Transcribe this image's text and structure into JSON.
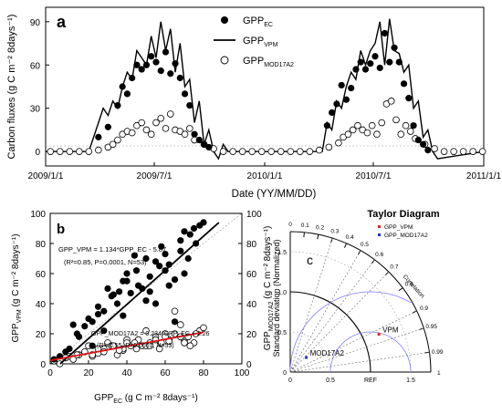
{
  "chart_data": [
    {
      "type": "line",
      "panel": "a",
      "xlabel": "Date (YY/MM/DD)",
      "ylabel": "Carbon fluxes (g C m⁻² 8days⁻¹)",
      "x_ticks": [
        "2009/1/1",
        "2009/7/1",
        "2010/1/1",
        "2010/7/1",
        "2011/1/1"
      ],
      "y_ticks": [
        0,
        30,
        60,
        90
      ],
      "xlim": [
        "2009/1/1",
        "2011/1/1"
      ],
      "ylim": [
        -10,
        100
      ],
      "legend_position": "top-right",
      "series": [
        {
          "name": "GPP",
          "name_sub": "EC",
          "marker": "filled-circle",
          "x": [
            "2009/3/30",
            "2009/4/15",
            "2009/5/1",
            "2009/5/9",
            "2009/5/17",
            "2009/5/25",
            "2009/6/2",
            "2009/6/10",
            "2009/6/18",
            "2009/6/26",
            "2009/7/4",
            "2009/7/12",
            "2009/7/20",
            "2009/7/28",
            "2009/8/5",
            "2009/8/13",
            "2009/8/21",
            "2009/8/29",
            "2009/9/6",
            "2009/9/14",
            "2009/9/22",
            "2009/9/30",
            "2010/4/15",
            "2010/4/23",
            "2010/5/1",
            "2010/5/9",
            "2010/5/17",
            "2010/5/25",
            "2010/6/2",
            "2010/6/10",
            "2010/6/18",
            "2010/6/26",
            "2010/7/4",
            "2010/7/12",
            "2010/7/20",
            "2010/7/28",
            "2010/8/5",
            "2010/8/13",
            "2010/8/21",
            "2010/8/29",
            "2010/9/6",
            "2010/9/14",
            "2010/9/22",
            "2010/9/30"
          ],
          "y": [
            10,
            17,
            32,
            45,
            40,
            51,
            60,
            57,
            60,
            66,
            62,
            56,
            69,
            54,
            61,
            51,
            40,
            32,
            12,
            8,
            5,
            3,
            18,
            27,
            33,
            46,
            36,
            44,
            57,
            62,
            57,
            61,
            66,
            58,
            82,
            62,
            72,
            62,
            47,
            37,
            18,
            8,
            5,
            1
          ]
        },
        {
          "name": "GPP",
          "name_sub": "VPM",
          "marker": "line",
          "x": [
            "2009/1/1",
            "2009/3/14",
            "2009/3/22",
            "2009/3/30",
            "2009/4/7",
            "2009/4/15",
            "2009/4/23",
            "2009/5/1",
            "2009/5/9",
            "2009/5/17",
            "2009/5/25",
            "2009/6/2",
            "2009/6/10",
            "2009/6/18",
            "2009/6/26",
            "2009/7/4",
            "2009/7/12",
            "2009/7/20",
            "2009/7/28",
            "2009/8/5",
            "2009/8/13",
            "2009/8/21",
            "2009/8/29",
            "2009/9/6",
            "2009/9/14",
            "2009/9/22",
            "2009/9/30",
            "2009/10/8",
            "2009/10/16",
            "2009/10/24",
            "2009/11/1",
            "2009/11/9",
            "2010/4/7",
            "2010/4/15",
            "2010/4/23",
            "2010/5/1",
            "2010/5/9",
            "2010/5/17",
            "2010/5/25",
            "2010/6/2",
            "2010/6/10",
            "2010/6/18",
            "2010/6/26",
            "2010/7/4",
            "2010/7/12",
            "2010/7/20",
            "2010/7/28",
            "2010/8/5",
            "2010/8/13",
            "2010/8/21",
            "2010/8/29",
            "2010/9/6",
            "2010/9/14",
            "2010/9/22",
            "2010/9/30",
            "2010/10/8",
            "2010/10/16",
            "2011/1/1"
          ],
          "y": [
            0,
            0,
            10,
            20,
            30,
            25,
            35,
            30,
            45,
            55,
            50,
            70,
            65,
            60,
            80,
            65,
            90,
            70,
            85,
            55,
            75,
            45,
            50,
            20,
            35,
            5,
            15,
            0,
            -5,
            5,
            0,
            0,
            0,
            20,
            15,
            35,
            30,
            45,
            55,
            50,
            70,
            60,
            70,
            75,
            90,
            60,
            92,
            70,
            68,
            55,
            60,
            30,
            35,
            10,
            15,
            0,
            -5,
            0
          ]
        },
        {
          "name": "GPP",
          "name_sub": "MOD17A2",
          "marker": "open-circle",
          "x": [
            "2009/1/9",
            "2009/1/25",
            "2009/2/10",
            "2009/2/26",
            "2009/3/14",
            "2009/3/30",
            "2009/4/15",
            "2009/4/23",
            "2009/5/1",
            "2009/5/9",
            "2009/5/17",
            "2009/5/25",
            "2009/6/2",
            "2009/6/10",
            "2009/6/18",
            "2009/6/26",
            "2009/7/4",
            "2009/7/12",
            "2009/7/20",
            "2009/7/28",
            "2009/8/5",
            "2009/8/13",
            "2009/8/21",
            "2009/8/29",
            "2009/9/6",
            "2009/9/22",
            "2009/10/8",
            "2009/10/24",
            "2009/11/9",
            "2009/11/25",
            "2009/12/11",
            "2009/12/27",
            "2010/1/12",
            "2010/1/28",
            "2010/2/13",
            "2010/3/1",
            "2010/3/17",
            "2010/4/2",
            "2010/4/18",
            "2010/5/4",
            "2010/5/12",
            "2010/5/20",
            "2010/5/28",
            "2010/6/5",
            "2010/6/13",
            "2010/6/21",
            "2010/6/29",
            "2010/7/7",
            "2010/7/15",
            "2010/7/23",
            "2010/7/31",
            "2010/8/8",
            "2010/8/16",
            "2010/8/24",
            "2010/9/1",
            "2010/9/9",
            "2010/9/25",
            "2010/10/11",
            "2010/10/27",
            "2010/11/12",
            "2010/11/28",
            "2010/12/14",
            "2010/12/30"
          ],
          "y": [
            0,
            0,
            0,
            0,
            0,
            1,
            3,
            5,
            8,
            12,
            14,
            13,
            18,
            20,
            15,
            12,
            20,
            23,
            16,
            26,
            15,
            14,
            12,
            16,
            8,
            5,
            2,
            0,
            0,
            0,
            0,
            0,
            0,
            0,
            0,
            0,
            0,
            1,
            3,
            6,
            10,
            12,
            15,
            18,
            15,
            13,
            18,
            12,
            20,
            33,
            35,
            22,
            12,
            18,
            14,
            9,
            5,
            2,
            0,
            0,
            0,
            0,
            0
          ]
        }
      ]
    },
    {
      "type": "scatter",
      "panel": "b",
      "xlabel": "GPP",
      "xlabel_sub": "EC",
      "xlabel_unit": " (g C m⁻² 8days⁻¹)",
      "ylabel": "GPP",
      "ylabel_sub": "VPM",
      "ylabel_unit": " (g C m⁻² 8days⁻¹)",
      "ylabel2": "GPP",
      "ylabel2_sub": "MOD17A2",
      "ylabel2_unit": " (g C m⁻² 8days⁻¹)",
      "xlim": [
        0,
        100
      ],
      "ylim": [
        0,
        100
      ],
      "x_ticks": [
        0,
        20,
        40,
        60,
        80,
        100
      ],
      "y_ticks": [
        0,
        20,
        40,
        60,
        80,
        100
      ],
      "eq_vpm": "GPP_VPM = 1.134*GPP_EC - 5.87",
      "stats_vpm": "(R²=0.85, P=0.0001, N=53)",
      "eq_mod": "GPP_MOD17A2 = 0.234*GPP_EC + 2.26",
      "stats_mod": "(R²=0.55, P=0.0001, N=53)",
      "fit_vpm": {
        "slope": 1.134,
        "intercept": -5.87
      },
      "fit_mod": {
        "slope": 0.234,
        "intercept": 2.26
      },
      "series": [
        {
          "marker": "filled-circle",
          "color": "#000000",
          "x": [
            2,
            5,
            10,
            12,
            15,
            18,
            20,
            22,
            25,
            28,
            30,
            32,
            35,
            38,
            40,
            42,
            45,
            48,
            50,
            52,
            55,
            58,
            60,
            62,
            65,
            68,
            70,
            72,
            75,
            78,
            80,
            8,
            14,
            25,
            33,
            40,
            46,
            50,
            57,
            60,
            65,
            70,
            73,
            28,
            38,
            44,
            52,
            55,
            62,
            68,
            76,
            22,
            36
          ],
          "y": [
            3,
            5,
            10,
            26,
            18,
            25,
            30,
            28,
            38,
            22,
            50,
            45,
            40,
            55,
            60,
            47,
            62,
            50,
            70,
            48,
            68,
            78,
            62,
            66,
            56,
            82,
            88,
            70,
            90,
            92,
            94,
            8,
            20,
            33,
            46,
            55,
            52,
            42,
            65,
            73,
            28,
            60,
            86,
            35,
            32,
            72,
            58,
            40,
            52,
            75,
            80,
            12,
            48
          ]
        },
        {
          "marker": "open-circle",
          "color": "#000000",
          "x": [
            2,
            5,
            10,
            12,
            15,
            18,
            20,
            22,
            25,
            28,
            30,
            32,
            35,
            38,
            40,
            42,
            45,
            48,
            50,
            52,
            55,
            58,
            60,
            62,
            65,
            68,
            70,
            72,
            75,
            78,
            80,
            8,
            14,
            25,
            33,
            40,
            46,
            50,
            57,
            60,
            65,
            70,
            73,
            28,
            38,
            44,
            52,
            55,
            62,
            68,
            76,
            22,
            36
          ],
          "y": [
            2,
            0,
            5,
            3,
            6,
            8,
            12,
            5,
            7,
            10,
            14,
            12,
            6,
            9,
            16,
            12,
            10,
            12,
            22,
            14,
            18,
            14,
            20,
            16,
            35,
            26,
            15,
            18,
            14,
            22,
            24,
            4,
            6,
            10,
            12,
            14,
            16,
            12,
            10,
            18,
            20,
            14,
            12,
            8,
            10,
            14,
            12,
            16,
            15,
            18,
            20,
            6,
            9
          ]
        }
      ]
    },
    {
      "type": "taylor",
      "panel": "c",
      "title": "Taylor Diagram",
      "ylabel": "Standard deviation (Normalized)",
      "axis_label_ref": "REF",
      "std_ticks": [
        0,
        0.5,
        1.0,
        1.5
      ],
      "correlation_label": "Correlation",
      "correlation_ticks": [
        0,
        0.1,
        0.2,
        0.3,
        0.4,
        0.5,
        0.6,
        0.7,
        0.8,
        0.9,
        0.95,
        0.99,
        1.0
      ],
      "legend_position": "top-right",
      "points": [
        {
          "name": "GPP_VPM",
          "label": "VPM",
          "std": 1.2,
          "corr": 0.92,
          "color": "#e02020"
        },
        {
          "name": "GPP_MOD17A2",
          "label": "MOD17A2",
          "std": 0.27,
          "corr": 0.74,
          "color": "#2030d0"
        }
      ]
    }
  ]
}
